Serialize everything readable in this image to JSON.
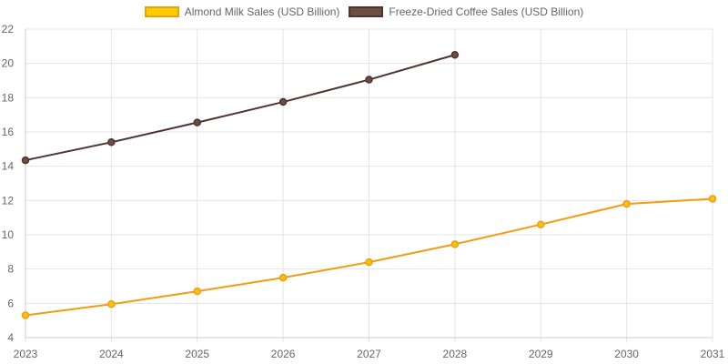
{
  "chart_data": {
    "type": "line",
    "title": "",
    "xlabel": "",
    "ylabel": "",
    "x": [
      "2023",
      "2024",
      "2025",
      "2026",
      "2027",
      "2028",
      "2029",
      "2030",
      "2031"
    ],
    "ylim": [
      4,
      22
    ],
    "yticks": [
      4,
      6,
      8,
      10,
      12,
      14,
      16,
      18,
      20,
      22
    ],
    "grid": true,
    "legend_position": "top-center",
    "series": [
      {
        "name": "Almond Milk Sales (USD Billion)",
        "values": [
          5.3,
          5.95,
          6.7,
          7.5,
          8.4,
          9.45,
          10.6,
          11.8,
          12.1
        ],
        "line_color": "#f39c12",
        "fill_color": "#f1c40f",
        "legend_fill": "#ffcc00",
        "legend_border": "#e8a30c"
      },
      {
        "name": "Freeze-Dried Coffee Sales (USD Billion)",
        "values": [
          14.35,
          15.4,
          16.55,
          17.75,
          19.05,
          20.5,
          null,
          null,
          null
        ],
        "line_color": "#4e342e",
        "fill_color": "#6d4c41",
        "legend_fill": "#6d4c41",
        "legend_border": "#4e342e"
      }
    ]
  }
}
